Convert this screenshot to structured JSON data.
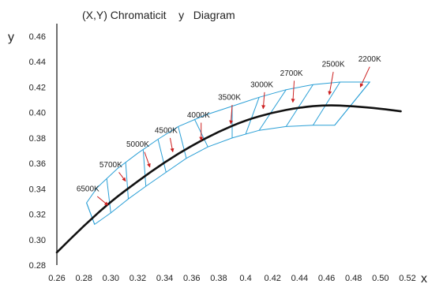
{
  "chart_data": {
    "type": "line",
    "title": "(X,Y) Chromaticit    y   Diagram",
    "xlabel": "x",
    "ylabel": "y",
    "xlim": [
      0.26,
      0.52
    ],
    "ylim": [
      0.28,
      0.46
    ],
    "x_ticks": [
      "0.26",
      "0.28",
      "0.30",
      "0.32",
      "0.34",
      "0.36",
      "0.38",
      "0.4",
      "0.42",
      "0.44",
      "0.46",
      "0.48",
      "0.50",
      "0.52"
    ],
    "y_ticks": [
      "0.28",
      "0.30",
      "0.32",
      "0.34",
      "0.36",
      "0.38",
      "0.40",
      "0.42",
      "0.44",
      "0.46"
    ],
    "grid": false,
    "colors": {
      "locus": "#111111",
      "bins": "#2a9fd6",
      "arrows": "#cc1f1f"
    },
    "series": [
      {
        "role": "planckian-locus",
        "x": [
          0.26,
          0.28,
          0.3,
          0.32,
          0.34,
          0.36,
          0.38,
          0.4,
          0.42,
          0.44,
          0.46,
          0.48,
          0.5,
          0.515
        ],
        "y": [
          0.29,
          0.311,
          0.33,
          0.346,
          0.361,
          0.374,
          0.385,
          0.394,
          0.4,
          0.404,
          0.406,
          0.405,
          0.403,
          0.401
        ]
      }
    ],
    "bins": {
      "upper_edge": [
        [
          0.282,
          0.329
        ],
        [
          0.29,
          0.341
        ],
        [
          0.305,
          0.356
        ],
        [
          0.32,
          0.368
        ],
        [
          0.335,
          0.379
        ],
        [
          0.35,
          0.389
        ],
        [
          0.37,
          0.398
        ],
        [
          0.39,
          0.405
        ],
        [
          0.41,
          0.412
        ],
        [
          0.43,
          0.418
        ],
        [
          0.45,
          0.422
        ],
        [
          0.47,
          0.424
        ],
        [
          0.492,
          0.424
        ]
      ],
      "lower_edge": [
        [
          0.288,
          0.312
        ],
        [
          0.3,
          0.321
        ],
        [
          0.313,
          0.332
        ],
        [
          0.326,
          0.342
        ],
        [
          0.341,
          0.353
        ],
        [
          0.356,
          0.364
        ],
        [
          0.372,
          0.373
        ],
        [
          0.39,
          0.38
        ],
        [
          0.41,
          0.386
        ],
        [
          0.43,
          0.389
        ],
        [
          0.45,
          0.39
        ],
        [
          0.466,
          0.39
        ]
      ],
      "dividers": [
        [
          [
            0.282,
            0.329
          ],
          [
            0.288,
            0.312
          ]
        ],
        [
          [
            0.297,
            0.348
          ],
          [
            0.3,
            0.321
          ]
        ],
        [
          [
            0.311,
            0.361
          ],
          [
            0.313,
            0.332
          ]
        ],
        [
          [
            0.324,
            0.371
          ],
          [
            0.326,
            0.342
          ]
        ],
        [
          [
            0.335,
            0.379
          ],
          [
            0.341,
            0.353
          ]
        ],
        [
          [
            0.35,
            0.389
          ],
          [
            0.356,
            0.364
          ]
        ],
        [
          [
            0.362,
            0.395
          ],
          [
            0.372,
            0.373
          ]
        ],
        [
          [
            0.39,
            0.405
          ],
          [
            0.39,
            0.38
          ]
        ],
        [
          [
            0.41,
            0.412
          ],
          [
            0.4,
            0.383
          ]
        ],
        [
          [
            0.43,
            0.418
          ],
          [
            0.41,
            0.386
          ]
        ],
        [
          [
            0.45,
            0.422
          ],
          [
            0.43,
            0.389
          ]
        ],
        [
          [
            0.47,
            0.424
          ],
          [
            0.45,
            0.39
          ]
        ],
        [
          [
            0.492,
            0.424
          ],
          [
            0.466,
            0.39
          ]
        ]
      ]
    },
    "annotations": [
      {
        "text": "6500K",
        "label": [
          0.283,
          0.338
        ],
        "arrow_from": [
          0.29,
          0.334
        ],
        "arrow_to": [
          0.298,
          0.327
        ]
      },
      {
        "text": "5700K",
        "label": [
          0.3,
          0.357
        ],
        "arrow_from": [
          0.306,
          0.353
        ],
        "arrow_to": [
          0.311,
          0.346
        ]
      },
      {
        "text": "5000K",
        "label": [
          0.32,
          0.373
        ],
        "arrow_from": [
          0.325,
          0.369
        ],
        "arrow_to": [
          0.329,
          0.357
        ]
      },
      {
        "text": "4500K",
        "label": [
          0.341,
          0.384
        ],
        "arrow_from": [
          0.344,
          0.38
        ],
        "arrow_to": [
          0.346,
          0.369
        ]
      },
      {
        "text": "4000K",
        "label": [
          0.365,
          0.396
        ],
        "arrow_from": [
          0.367,
          0.392
        ],
        "arrow_to": [
          0.367,
          0.378
        ]
      },
      {
        "text": "3500K",
        "label": [
          0.388,
          0.41
        ],
        "arrow_from": [
          0.39,
          0.406
        ],
        "arrow_to": [
          0.389,
          0.391
        ]
      },
      {
        "text": "3000K",
        "label": [
          0.412,
          0.42
        ],
        "arrow_from": [
          0.414,
          0.416
        ],
        "arrow_to": [
          0.413,
          0.403
        ]
      },
      {
        "text": "2700K",
        "label": [
          0.434,
          0.429
        ],
        "arrow_from": [
          0.436,
          0.425
        ],
        "arrow_to": [
          0.435,
          0.408
        ]
      },
      {
        "text": "2500K",
        "label": [
          0.465,
          0.436
        ],
        "arrow_from": [
          0.465,
          0.432
        ],
        "arrow_to": [
          0.462,
          0.414
        ]
      },
      {
        "text": "2200K",
        "label": [
          0.492,
          0.44
        ],
        "arrow_from": [
          0.492,
          0.436
        ],
        "arrow_to": [
          0.485,
          0.42
        ]
      }
    ]
  }
}
